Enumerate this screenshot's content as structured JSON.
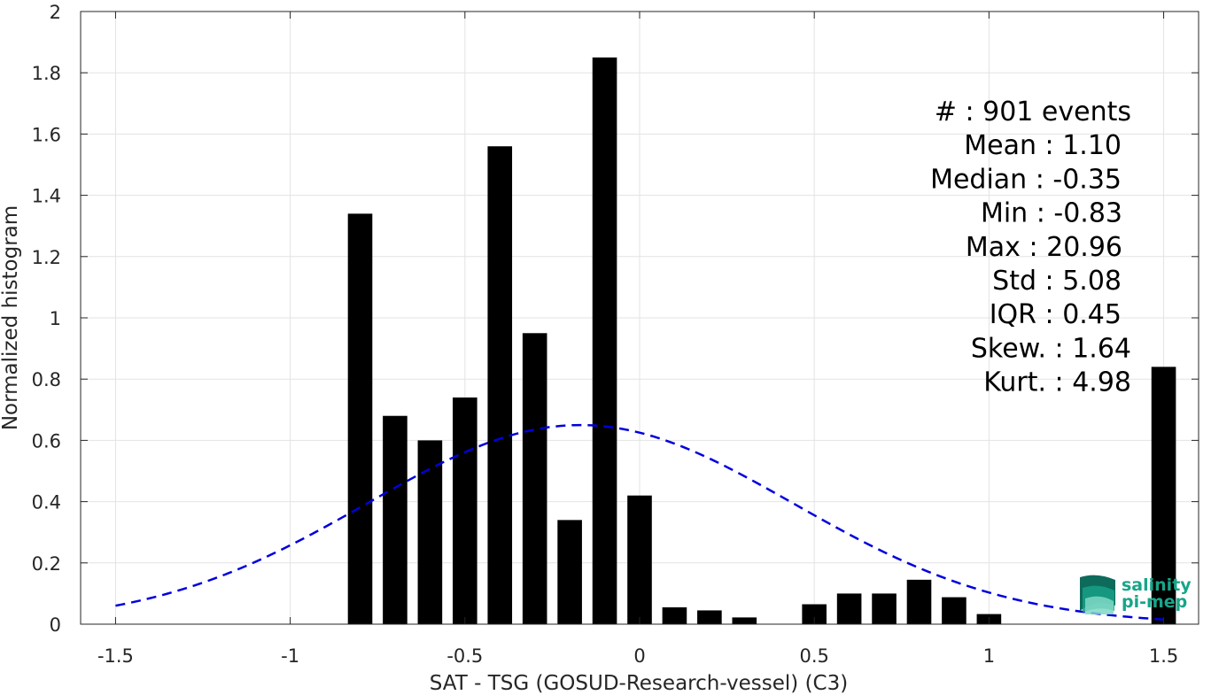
{
  "chart_data": {
    "type": "bar",
    "xlabel": "SAT - TSG (GOSUD-Research-vessel) (C3)",
    "ylabel": "Normalized histogram",
    "xlim": [
      -1.6,
      1.6
    ],
    "ylim": [
      0,
      2
    ],
    "grid": true,
    "xticks": [
      -1.5,
      -1,
      -0.5,
      0,
      0.5,
      1,
      1.5
    ],
    "xtick_labels": [
      "-1.5",
      "-1",
      "-0.5",
      "0",
      "0.5",
      "1",
      "1.5"
    ],
    "yticks": [
      0,
      0.2,
      0.4,
      0.6,
      0.8,
      1,
      1.2,
      1.4,
      1.6,
      1.8,
      2
    ],
    "ytick_labels": [
      "0",
      "0.2",
      "0.4",
      "0.6",
      "0.8",
      "1",
      "1.2",
      "1.4",
      "1.6",
      "1.8",
      "2"
    ],
    "bar_width": 0.07,
    "bars": {
      "x": [
        -0.8,
        -0.7,
        -0.6,
        -0.5,
        -0.4,
        -0.3,
        -0.2,
        -0.1,
        0.0,
        0.1,
        0.2,
        0.3,
        0.5,
        0.6,
        0.7,
        0.8,
        0.9,
        1.0,
        1.5
      ],
      "y": [
        1.34,
        0.68,
        0.6,
        0.74,
        1.56,
        0.95,
        0.34,
        1.85,
        0.42,
        0.055,
        0.045,
        0.022,
        0.065,
        0.1,
        0.1,
        0.145,
        0.088,
        0.033,
        0.84
      ]
    },
    "bar_color": "#000000",
    "fit_curve": {
      "style": "dashed",
      "color": "#0000dd",
      "mean": -0.17,
      "sigma": 0.61,
      "peak": 0.65,
      "x_range": [
        -1.5,
        1.5
      ]
    },
    "stats": [
      {
        "label": "#  ",
        "value": ": 901 events"
      },
      {
        "label": "Mean ",
        "value": ": 1.10"
      },
      {
        "label": "Median ",
        "value": ": -0.35"
      },
      {
        "label": "Min ",
        "value": ": -0.83"
      },
      {
        "label": "Max ",
        "value": ": 20.96"
      },
      {
        "label": "Std ",
        "value": ": 5.08"
      },
      {
        "label": "IQR ",
        "value": ": 0.45"
      },
      {
        "label": "Skew. ",
        "value": ": 1.64"
      },
      {
        "label": "Kurt. ",
        "value": ": 4.98"
      }
    ]
  },
  "logo": {
    "line1": "salinity",
    "line2": "pi-mep",
    "color": "#17a589"
  }
}
